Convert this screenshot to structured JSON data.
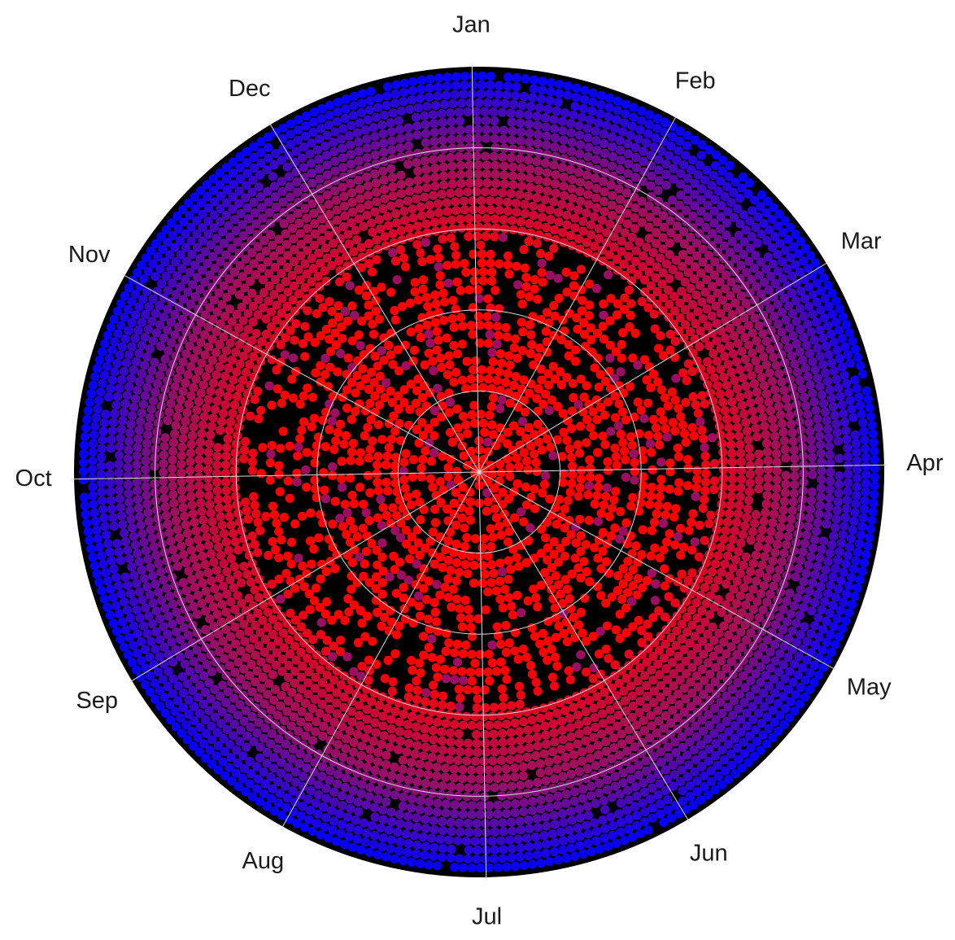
{
  "chart_data": {
    "type": "scatter",
    "coordinate_system": "polar",
    "title": "",
    "angular_axis": {
      "direction": "clockwise",
      "start": "Jan at top",
      "tick_labels": [
        "Jan",
        "Feb",
        "Mar",
        "Apr",
        "May",
        "Jun",
        "Jul",
        "Aug",
        "Sep",
        "Oct",
        "Nov",
        "Dec"
      ]
    },
    "radial_axis": {
      "tick_labels_shown": false,
      "range": [
        0,
        1
      ],
      "gridlines": [
        0.2,
        0.4,
        0.6,
        0.8
      ]
    },
    "rings": 45,
    "color_scale": {
      "inner": "#ff0000",
      "middle": "#9b0f63",
      "outer": "#0000ff"
    },
    "colors": {
      "background": "#000000",
      "grid": "#dddddd",
      "page": "#ffffff",
      "label": "#1a1a1a"
    },
    "grid": true,
    "legend": "none"
  }
}
